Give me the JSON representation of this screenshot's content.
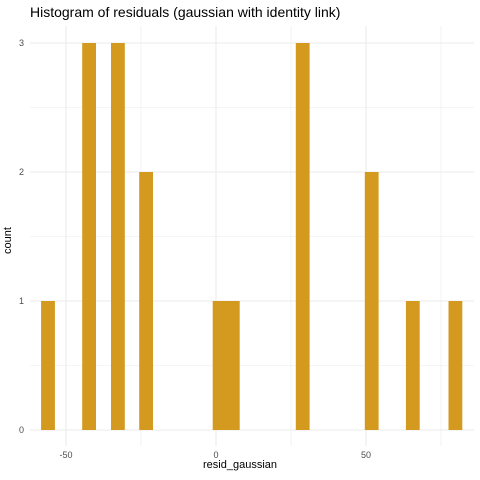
{
  "chart_data": {
    "type": "bar",
    "title": "Histogram of residuals (gaussian with identity link)",
    "xlabel": "resid_gaussian",
    "ylabel": "count",
    "xlim": [
      -62,
      86
    ],
    "ylim": [
      0,
      3
    ],
    "x_ticks": [
      -50,
      0,
      50
    ],
    "x_minor_ticks": [
      -25,
      25,
      75
    ],
    "y_ticks": [
      0,
      1,
      2,
      3
    ],
    "y_minor_ticks": [
      0.5,
      1.5,
      2.5
    ],
    "bin_width": 4.6,
    "bins": [
      {
        "x": -56.0,
        "count": 1
      },
      {
        "x": -42.3,
        "count": 3
      },
      {
        "x": -32.7,
        "count": 3
      },
      {
        "x": -23.3,
        "count": 2
      },
      {
        "x": 1.2,
        "count": 1
      },
      {
        "x": 5.6,
        "count": 1
      },
      {
        "x": 28.9,
        "count": 3
      },
      {
        "x": 51.9,
        "count": 2
      },
      {
        "x": 65.6,
        "count": 1
      },
      {
        "x": 79.8,
        "count": 1
      }
    ],
    "bar_color": "#D4991F",
    "grid": true,
    "grid_color": "#EBEBEB",
    "legend": "none"
  }
}
